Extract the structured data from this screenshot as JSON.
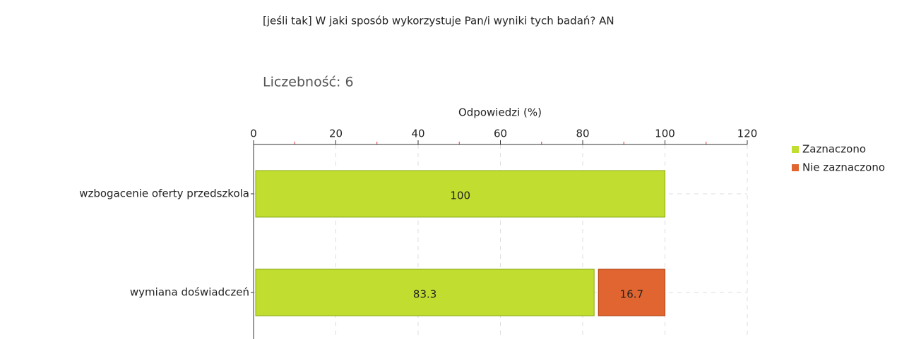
{
  "chart_data": {
    "type": "stacked-barh",
    "title": "[jeśli tak] W jaki sposób wykorzystuje Pan/i wyniki tych badań? AN",
    "subtitle": "Liczebność: 6",
    "xlabel": "Odpowiedzi (%)",
    "categories": [
      "wzbogacenie oferty przedszkola",
      "wymiana doświadczeń"
    ],
    "series": [
      {
        "name": "Zaznaczono",
        "color": "#c0dd30",
        "values": [
          100,
          83.3
        ]
      },
      {
        "name": "Nie zaznaczono",
        "color": "#e06530",
        "values": [
          0,
          16.7
        ]
      }
    ],
    "xlim": [
      0,
      120
    ],
    "xticks": [
      0,
      20,
      40,
      60,
      80,
      100,
      120
    ],
    "xminorticks": [
      10,
      30,
      50,
      70,
      90,
      110
    ],
    "grid": true,
    "legend": "right"
  }
}
